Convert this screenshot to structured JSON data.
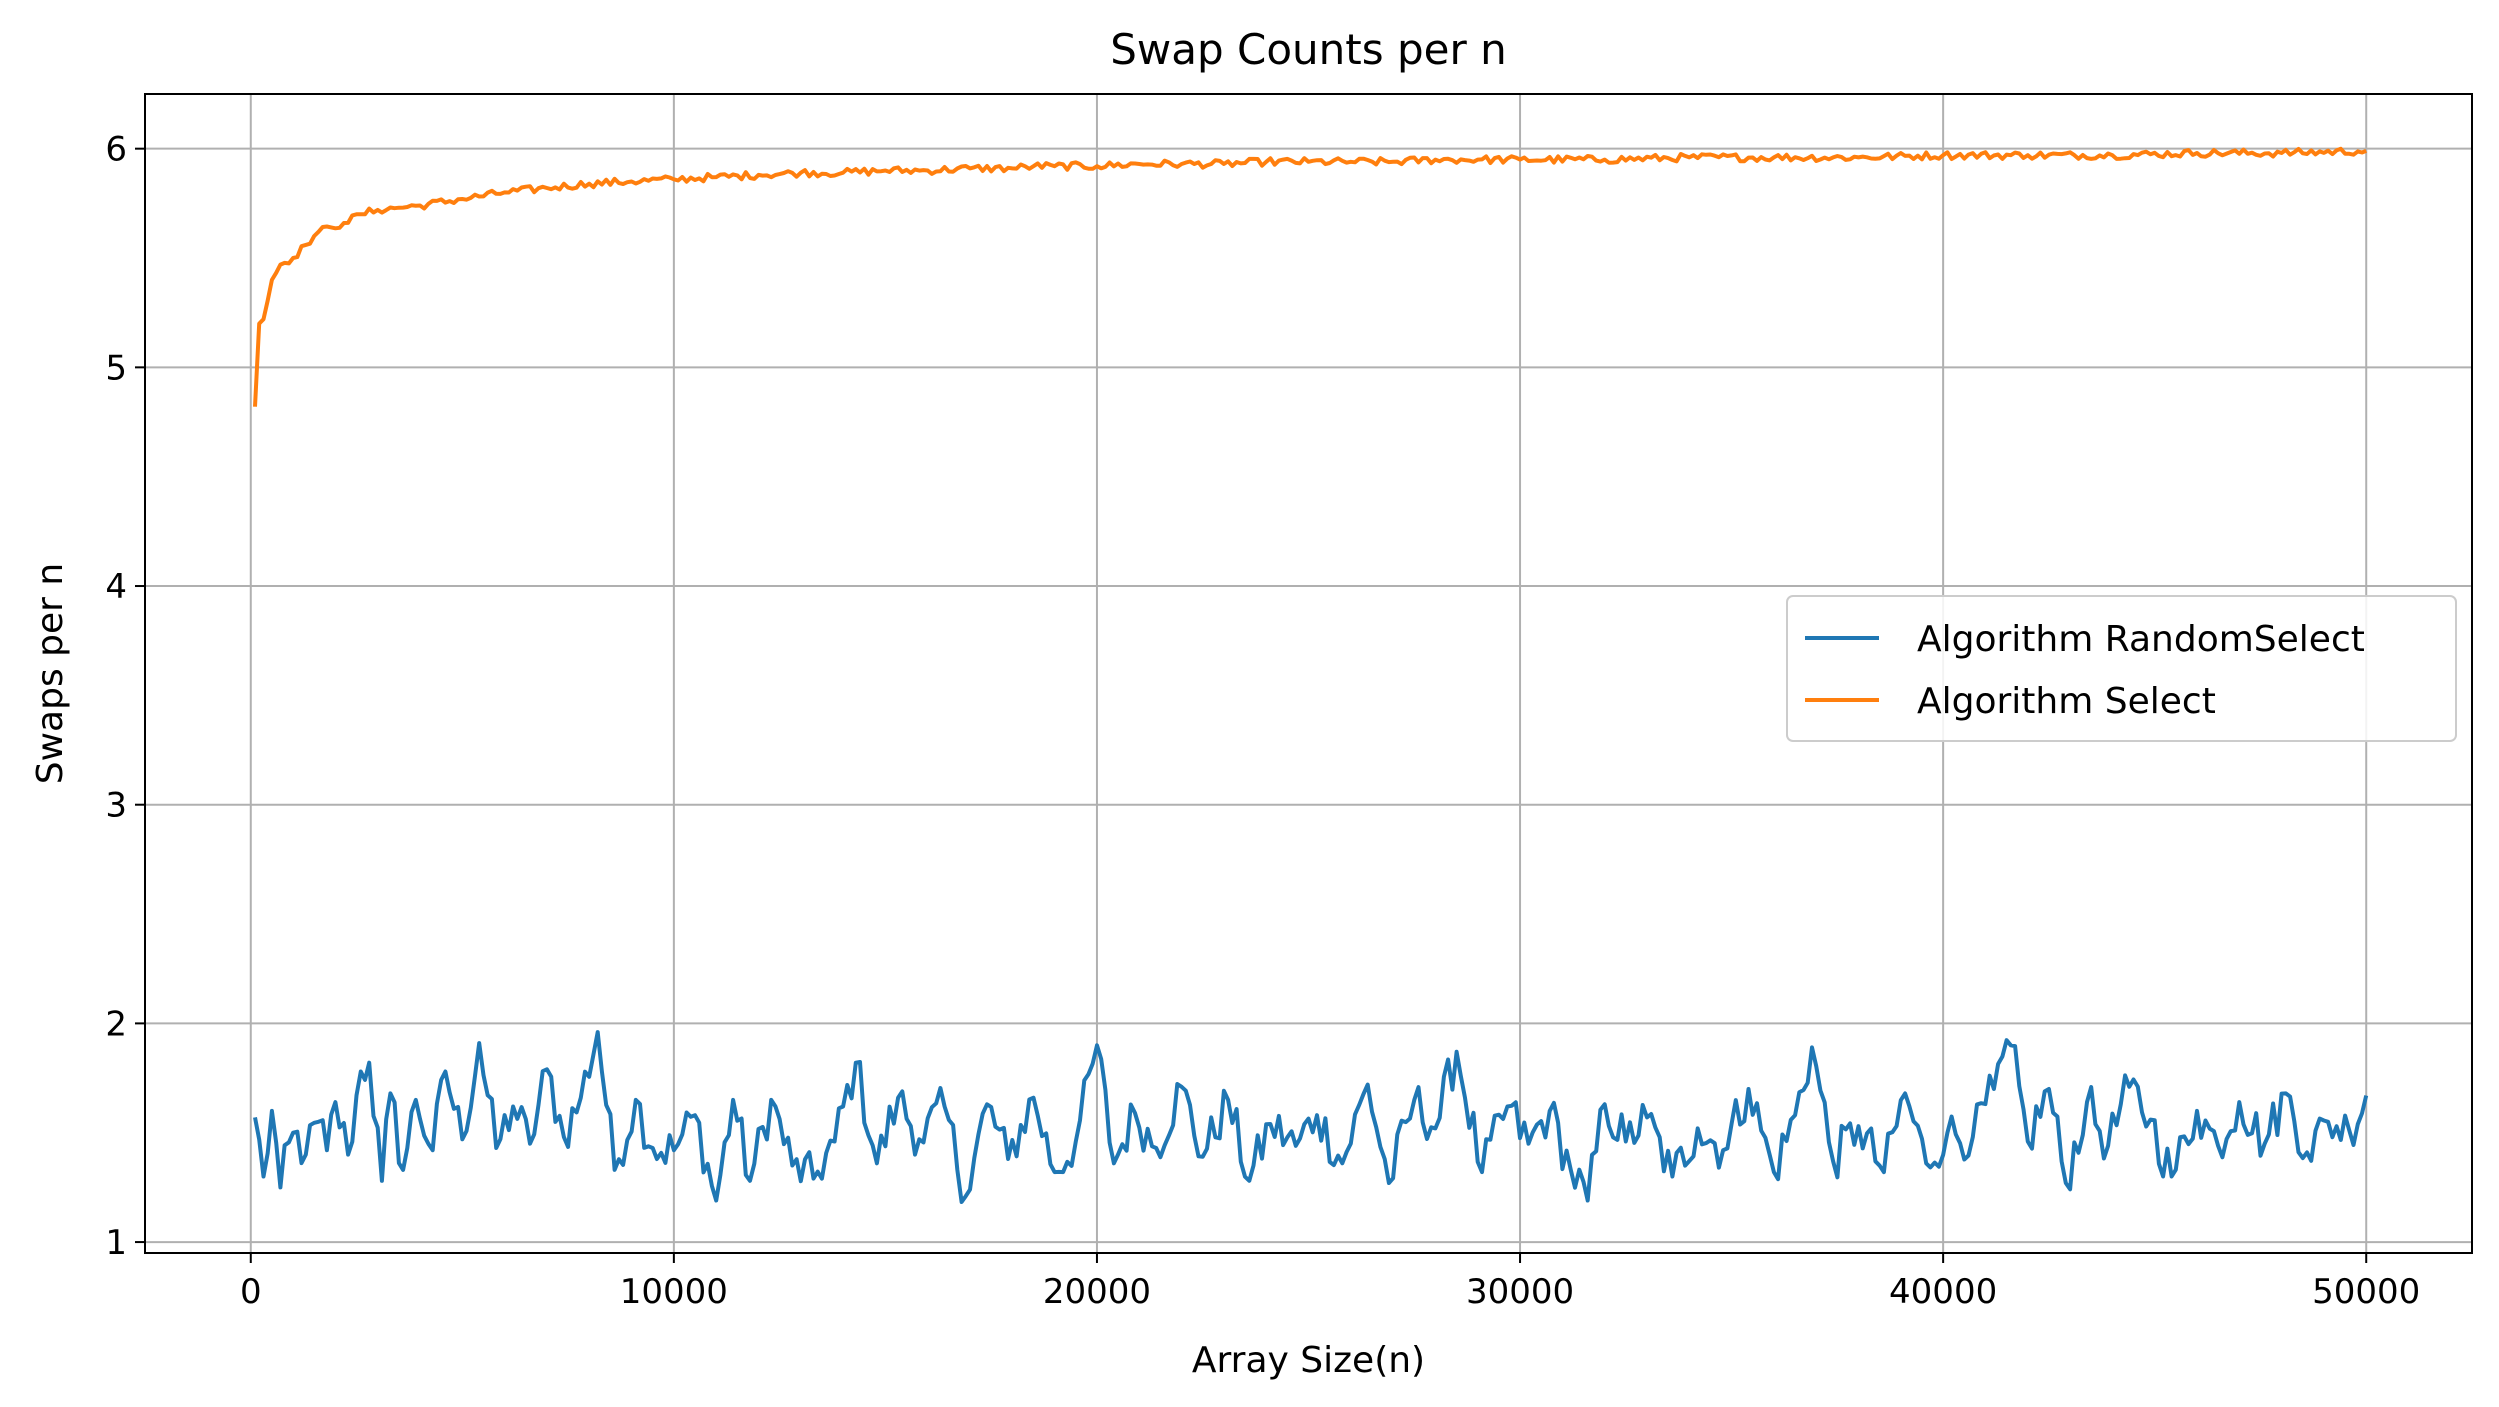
{
  "chart_data": {
    "type": "line",
    "title": "Swap Counts per n",
    "xlabel": "Array Size(n)",
    "ylabel": "Swaps per n",
    "xlim": [
      -2500,
      52500
    ],
    "ylim": [
      0.95,
      6.25
    ],
    "x_ticks": [
      0,
      10000,
      20000,
      30000,
      40000,
      50000
    ],
    "x_tick_labels": [
      "0",
      "10000",
      "20000",
      "30000",
      "40000",
      "50000"
    ],
    "y_ticks": [
      1,
      2,
      3,
      4,
      5,
      6
    ],
    "y_tick_labels": [
      "1",
      "2",
      "3",
      "4",
      "5",
      "6"
    ],
    "grid": true,
    "legend_position": "center-right",
    "x_sampling": {
      "start": 100,
      "step": 100,
      "count": 500
    },
    "series": [
      {
        "name": "Algorithm RandomSelect",
        "color": "#1f77b4",
        "keypoints": [
          [
            100,
            1.57
          ],
          [
            300,
            1.3
          ],
          [
            500,
            1.6
          ],
          [
            700,
            1.25
          ],
          [
            1000,
            1.5
          ],
          [
            1300,
            1.4
          ],
          [
            1600,
            1.55
          ],
          [
            1800,
            1.42
          ],
          [
            2000,
            1.64
          ],
          [
            2300,
            1.4
          ],
          [
            2600,
            1.78
          ],
          [
            2800,
            1.82
          ],
          [
            3100,
            1.28
          ],
          [
            3300,
            1.68
          ],
          [
            3600,
            1.33
          ],
          [
            3900,
            1.65
          ],
          [
            4300,
            1.42
          ],
          [
            4600,
            1.78
          ],
          [
            5000,
            1.47
          ],
          [
            5400,
            1.91
          ],
          [
            5800,
            1.43
          ],
          [
            6200,
            1.62
          ],
          [
            6600,
            1.45
          ],
          [
            7000,
            1.79
          ],
          [
            7400,
            1.48
          ],
          [
            7800,
            1.66
          ],
          [
            8200,
            1.96
          ],
          [
            8600,
            1.33
          ],
          [
            9100,
            1.65
          ],
          [
            9500,
            1.43
          ],
          [
            10000,
            1.42
          ],
          [
            10500,
            1.58
          ],
          [
            11000,
            1.19
          ],
          [
            11400,
            1.65
          ],
          [
            11800,
            1.28
          ],
          [
            12300,
            1.65
          ],
          [
            12800,
            1.35
          ],
          [
            13300,
            1.29
          ],
          [
            13800,
            1.46
          ],
          [
            14300,
            1.82
          ],
          [
            14800,
            1.36
          ],
          [
            15300,
            1.66
          ],
          [
            15800,
            1.47
          ],
          [
            16400,
            1.62
          ],
          [
            16900,
            1.21
          ],
          [
            17400,
            1.63
          ],
          [
            17900,
            1.38
          ],
          [
            18500,
            1.66
          ],
          [
            19000,
            1.32
          ],
          [
            19500,
            1.46
          ],
          [
            20000,
            1.9
          ],
          [
            20400,
            1.36
          ],
          [
            20900,
            1.59
          ],
          [
            21400,
            1.43
          ],
          [
            22000,
            1.71
          ],
          [
            22500,
            1.39
          ],
          [
            23100,
            1.65
          ],
          [
            23600,
            1.28
          ],
          [
            24100,
            1.54
          ],
          [
            24700,
            1.44
          ],
          [
            25200,
            1.58
          ],
          [
            25800,
            1.36
          ],
          [
            26400,
            1.72
          ],
          [
            26900,
            1.27
          ],
          [
            27500,
            1.65
          ],
          [
            28000,
            1.52
          ],
          [
            28500,
            1.87
          ],
          [
            29100,
            1.32
          ],
          [
            29700,
            1.62
          ],
          [
            30200,
            1.45
          ],
          [
            30700,
            1.6
          ],
          [
            31200,
            1.33
          ],
          [
            31600,
            1.19
          ],
          [
            32000,
            1.63
          ],
          [
            32500,
            1.46
          ],
          [
            33000,
            1.57
          ],
          [
            33600,
            1.3
          ],
          [
            34200,
            1.52
          ],
          [
            34800,
            1.42
          ],
          [
            35400,
            1.7
          ],
          [
            36000,
            1.32
          ],
          [
            36500,
            1.58
          ],
          [
            36900,
            1.89
          ],
          [
            37400,
            1.37
          ],
          [
            38000,
            1.53
          ],
          [
            38600,
            1.32
          ],
          [
            39100,
            1.68
          ],
          [
            39600,
            1.36
          ],
          [
            40100,
            1.5
          ],
          [
            40700,
            1.48
          ],
          [
            41200,
            1.7
          ],
          [
            41600,
            1.9
          ],
          [
            42000,
            1.46
          ],
          [
            42500,
            1.7
          ],
          [
            42900,
            1.27
          ],
          [
            43400,
            1.64
          ],
          [
            43900,
            1.44
          ],
          [
            44400,
            1.71
          ],
          [
            44900,
            1.56
          ],
          [
            45400,
            1.3
          ],
          [
            46000,
            1.6
          ],
          [
            46500,
            1.44
          ],
          [
            47000,
            1.64
          ],
          [
            47600,
            1.45
          ],
          [
            48100,
            1.68
          ],
          [
            48600,
            1.41
          ],
          [
            49100,
            1.55
          ],
          [
            49600,
            1.51
          ],
          [
            50000,
            1.67
          ]
        ]
      },
      {
        "name": "Algorithm Select",
        "color": "#ff7f0e",
        "keypoints": [
          [
            100,
            4.82
          ],
          [
            200,
            5.2
          ],
          [
            300,
            5.22
          ],
          [
            500,
            5.4
          ],
          [
            700,
            5.47
          ],
          [
            1000,
            5.5
          ],
          [
            1300,
            5.56
          ],
          [
            1600,
            5.62
          ],
          [
            1900,
            5.64
          ],
          [
            2200,
            5.66
          ],
          [
            2600,
            5.7
          ],
          [
            3000,
            5.72
          ],
          [
            3500,
            5.73
          ],
          [
            4000,
            5.74
          ],
          [
            5000,
            5.77
          ],
          [
            6000,
            5.8
          ],
          [
            7000,
            5.82
          ],
          [
            8000,
            5.84
          ],
          [
            9000,
            5.85
          ],
          [
            10000,
            5.86
          ],
          [
            11000,
            5.87
          ],
          [
            12000,
            5.88
          ],
          [
            13000,
            5.89
          ],
          [
            14000,
            5.89
          ],
          [
            15000,
            5.9
          ],
          [
            16000,
            5.9
          ],
          [
            17000,
            5.91
          ],
          [
            18000,
            5.91
          ],
          [
            18500,
            5.92
          ],
          [
            19000,
            5.92
          ],
          [
            20000,
            5.92
          ],
          [
            21000,
            5.93
          ],
          [
            22000,
            5.93
          ],
          [
            23000,
            5.93
          ],
          [
            24000,
            5.94
          ],
          [
            25000,
            5.94
          ],
          [
            26000,
            5.94
          ],
          [
            27000,
            5.94
          ],
          [
            28000,
            5.95
          ],
          [
            29000,
            5.95
          ],
          [
            30000,
            5.95
          ],
          [
            32000,
            5.95
          ],
          [
            34000,
            5.96
          ],
          [
            36000,
            5.96
          ],
          [
            38000,
            5.96
          ],
          [
            40000,
            5.97
          ],
          [
            42000,
            5.97
          ],
          [
            44000,
            5.97
          ],
          [
            46000,
            5.98
          ],
          [
            48000,
            5.98
          ],
          [
            50000,
            5.99
          ]
        ]
      }
    ]
  }
}
